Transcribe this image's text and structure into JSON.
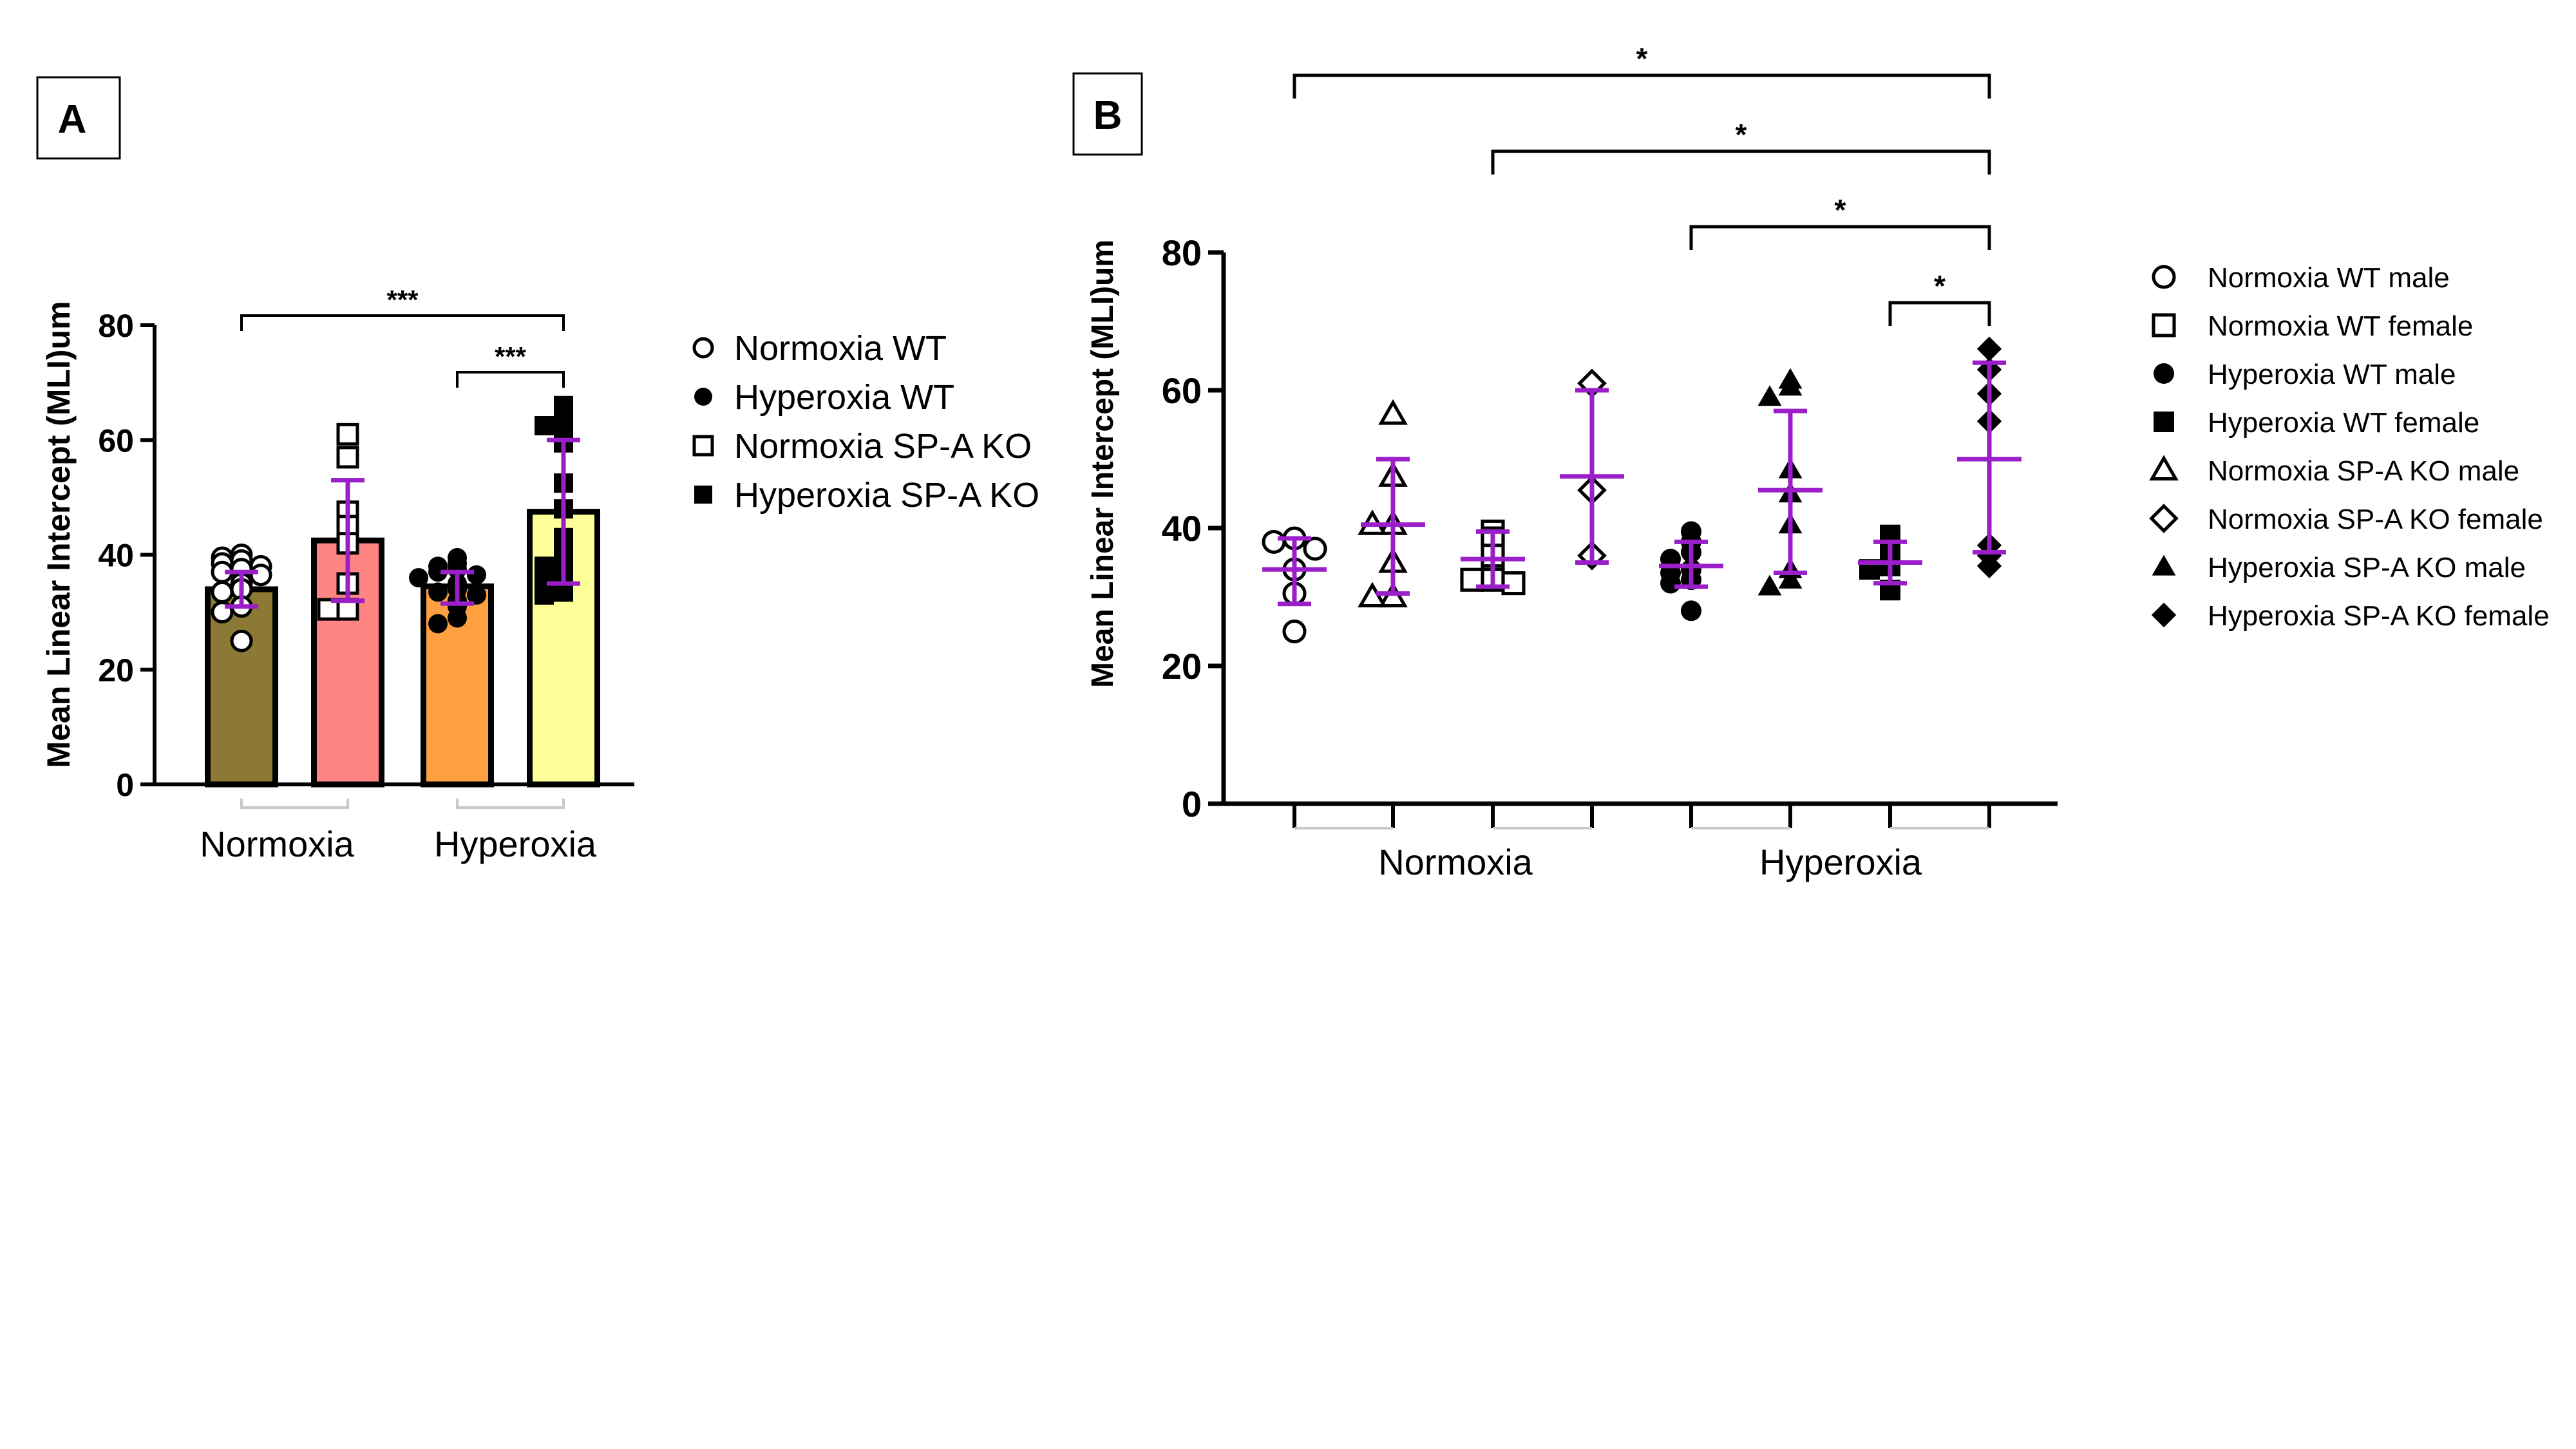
{
  "colors": {
    "errorbar": "#9B1FC9",
    "marker": "#000000",
    "bar_fills": [
      "#8B7935",
      "#FF8585",
      "#FFA040",
      "#FFFF99"
    ]
  },
  "chart_data": [
    {
      "panel": "A",
      "type": "bar",
      "ylabel": "Mean Linear Intercept (MLI)um",
      "ylim": [
        0,
        80
      ],
      "yticks": [
        0,
        20,
        40,
        60,
        80
      ],
      "group_labels": [
        "Normoxia",
        "Hyperoxia"
      ],
      "categories": [
        "Normoxia WT",
        "Normoxia SP-A KO",
        "Hyperoxia WT",
        "Hyperoxia SP-A KO"
      ],
      "bars": [
        {
          "name": "Normoxia WT",
          "marker": "open-circle",
          "fill": "#8B7935",
          "mean": 34,
          "sd_low": 31,
          "sd_high": 37,
          "points": [
            40,
            39.5,
            39,
            38.5,
            38,
            37.5,
            37,
            36.5,
            35,
            34,
            33.5,
            31,
            30,
            25
          ]
        },
        {
          "name": "Normoxia SP-A KO",
          "marker": "open-square",
          "fill": "#FF8585",
          "mean": 42.5,
          "sd_low": 32,
          "sd_high": 53,
          "points": [
            61,
            57,
            47.5,
            45,
            42,
            35,
            30.5,
            30.5
          ]
        },
        {
          "name": "Hyperoxia WT",
          "marker": "filled-circle",
          "fill": "#FFA040",
          "mean": 34.5,
          "sd_low": 31.5,
          "sd_high": 37,
          "points": [
            39.5,
            38.5,
            38,
            37.5,
            37,
            36.5,
            36,
            35,
            34,
            33.5,
            33,
            32,
            31,
            29,
            28
          ]
        },
        {
          "name": "Hyperoxia SP-A KO",
          "marker": "filled-square",
          "fill": "#FFFF99",
          "mean": 47.5,
          "sd_low": 35,
          "sd_high": 60,
          "points": [
            66,
            63,
            62.5,
            60,
            59.5,
            52.5,
            48,
            43,
            42,
            40,
            39,
            38,
            37,
            35,
            35.5,
            33.5,
            33
          ]
        }
      ],
      "significance": [
        {
          "from": 0,
          "to": 3,
          "label": "***"
        },
        {
          "from": 2,
          "to": 3,
          "label": "***"
        }
      ],
      "legend": [
        {
          "label": "Normoxia WT",
          "marker": "open-circle"
        },
        {
          "label": "Hyperoxia WT",
          "marker": "filled-circle"
        },
        {
          "label": "Normoxia SP-A KO",
          "marker": "open-square"
        },
        {
          "label": "Hyperoxia SP-A KO",
          "marker": "filled-square"
        }
      ]
    },
    {
      "panel": "B",
      "type": "scatter",
      "ylabel": "Mean Linear Intercept (MLI)um",
      "ylim": [
        0,
        80
      ],
      "yticks": [
        0,
        20,
        40,
        60,
        80
      ],
      "group_labels": [
        "Normoxia",
        "Hyperoxia"
      ],
      "series": [
        {
          "name": "Normoxia WT male",
          "marker": "open-circle",
          "mean": 34,
          "sd_low": 29,
          "sd_high": 38.5,
          "points": [
            38.5,
            38,
            37,
            34,
            30.5,
            25
          ]
        },
        {
          "name": "Normoxia SP-A KO male",
          "marker": "open-triangle",
          "mean": 40.5,
          "sd_low": 30.5,
          "sd_high": 50,
          "points": [
            56.5,
            47.5,
            40.5,
            40.5,
            35,
            30,
            30
          ]
        },
        {
          "name": "Normoxia WT female",
          "marker": "open-square",
          "mean": 35.5,
          "sd_low": 31.5,
          "sd_high": 39.5,
          "points": [
            39.5,
            38.5,
            36,
            33,
            32.5,
            32.5,
            32
          ]
        },
        {
          "name": "Normoxia SP-A KO female",
          "marker": "open-diamond",
          "mean": 47.5,
          "sd_low": 35,
          "sd_high": 60,
          "points": [
            61,
            45.5,
            36
          ]
        },
        {
          "name": "Hyperoxia WT male",
          "marker": "filled-circle",
          "mean": 34.5,
          "sd_low": 31.5,
          "sd_high": 38,
          "points": [
            39.5,
            38,
            36.5,
            35.5,
            34,
            33.5,
            32.5,
            32,
            28
          ]
        },
        {
          "name": "Hyperoxia SP-A KO male",
          "marker": "filled-triangle",
          "mean": 45.5,
          "sd_low": 33.5,
          "sd_high": 57,
          "points": [
            61.5,
            60.5,
            59,
            48.5,
            45,
            40.5,
            34,
            32.5,
            31.5
          ]
        },
        {
          "name": "Hyperoxia WT female",
          "marker": "filled-square",
          "mean": 35,
          "sd_low": 32,
          "sd_high": 38,
          "points": [
            39,
            37.5,
            35,
            34.5,
            34,
            31
          ]
        },
        {
          "name": "Hyperoxia SP-A KO female",
          "marker": "filled-diamond",
          "mean": 50,
          "sd_low": 36.5,
          "sd_high": 64,
          "points": [
            66,
            63,
            59.5,
            55.5,
            37.5,
            36,
            34.5
          ]
        }
      ],
      "significance": [
        {
          "from": 0,
          "to": 7,
          "label": "*"
        },
        {
          "from": 2,
          "to": 7,
          "label": "*"
        },
        {
          "from": 4,
          "to": 7,
          "label": "*"
        },
        {
          "from": 6,
          "to": 7,
          "label": "*"
        }
      ],
      "legend": [
        {
          "label": "Normoxia WT male",
          "marker": "open-circle"
        },
        {
          "label": "Normoxia WT female",
          "marker": "open-square"
        },
        {
          "label": "Hyperoxia WT male",
          "marker": "filled-circle"
        },
        {
          "label": "Hyperoxia WT female",
          "marker": "filled-square"
        },
        {
          "label": "Normoxia SP-A KO male",
          "marker": "open-triangle"
        },
        {
          "label": "Normoxia SP-A KO female",
          "marker": "open-diamond"
        },
        {
          "label": "Hyperoxia SP-A KO male",
          "marker": "filled-triangle"
        },
        {
          "label": "Hyperoxia SP-A KO female",
          "marker": "filled-diamond"
        }
      ]
    }
  ]
}
